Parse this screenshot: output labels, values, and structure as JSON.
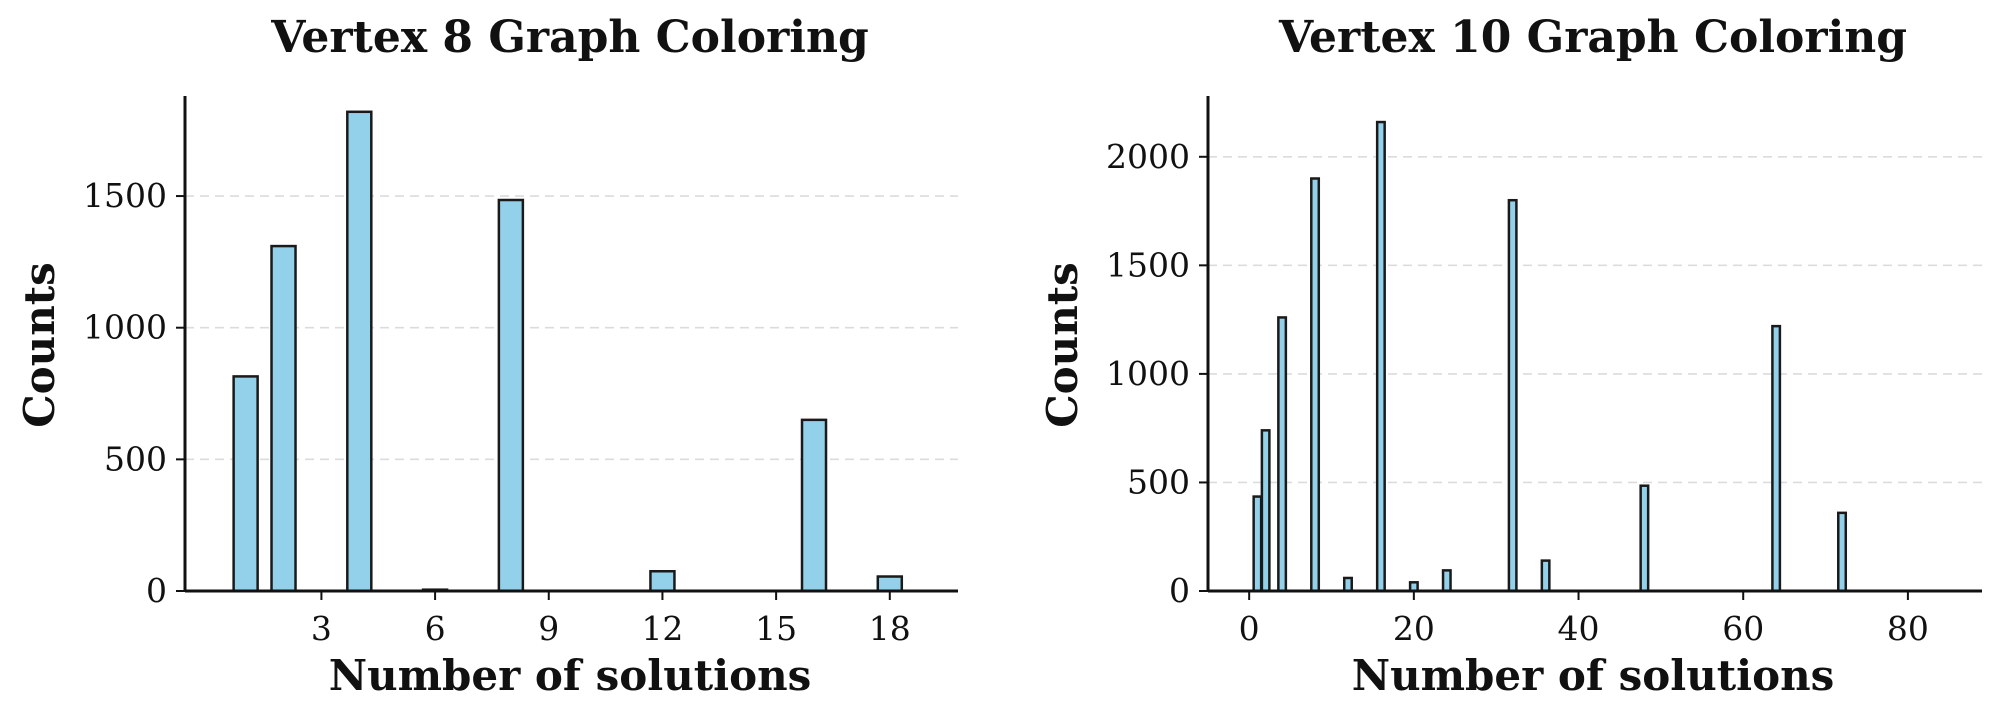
{
  "chart_data": [
    {
      "type": "bar",
      "title": "Vertex 8 Graph Coloring",
      "xlabel": "Number of solutions",
      "ylabel": "Counts",
      "x": [
        1,
        2,
        4,
        6,
        8,
        12,
        16,
        18
      ],
      "values": [
        815,
        1310,
        1820,
        5,
        1485,
        75,
        650,
        55
      ],
      "xlim": [
        -0.6,
        19.8
      ],
      "ylim": [
        0,
        1880
      ],
      "xticks": [
        3,
        6,
        9,
        12,
        15,
        18
      ],
      "yticks": [
        0,
        500,
        1000,
        1500
      ],
      "grid": "y-dashed",
      "colors": {
        "bar_fill": "#93d1ea",
        "bar_edge": "#1a1a1a"
      }
    },
    {
      "type": "bar",
      "title": "Vertex 10 Graph Coloring",
      "xlabel": "Number of solutions",
      "ylabel": "Counts",
      "x": [
        1,
        2,
        4,
        8,
        12,
        16,
        20,
        24,
        32,
        36,
        48,
        64,
        72
      ],
      "values": [
        435,
        740,
        1260,
        1900,
        60,
        2160,
        40,
        95,
        1800,
        140,
        485,
        1220,
        360
      ],
      "xlim": [
        -5,
        89
      ],
      "ylim": [
        0,
        2280
      ],
      "xticks": [
        0,
        20,
        40,
        60,
        80
      ],
      "yticks": [
        0,
        500,
        1000,
        1500,
        2000
      ],
      "grid": "y-dashed",
      "colors": {
        "bar_fill": "#93d1ea",
        "bar_edge": "#1a1a1a"
      }
    }
  ]
}
